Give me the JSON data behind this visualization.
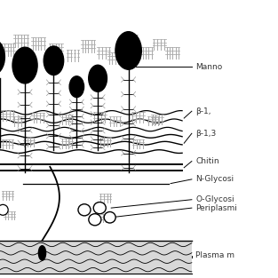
{
  "fig_width": 3.13,
  "fig_height": 3.13,
  "dpi": 100,
  "bg_color": "#ffffff",
  "labels": {
    "manno": "Manno",
    "beta16": "β-1,",
    "beta13": "β-1,3",
    "chitin": "Chitin",
    "nglyco": "N-Glycosi",
    "oglyco": "O-Glycosi",
    "periplasmi": "Periplasmi",
    "plasma": "Plasma m"
  },
  "colors": {
    "black": "#000000",
    "gray": "#aaaaaa",
    "dark_gray": "#555555",
    "branch_color": "#999999",
    "membrane_bg": "#d8d8d8"
  },
  "xlim": [
    0,
    1.45
  ],
  "ylim": [
    0,
    1.0
  ]
}
